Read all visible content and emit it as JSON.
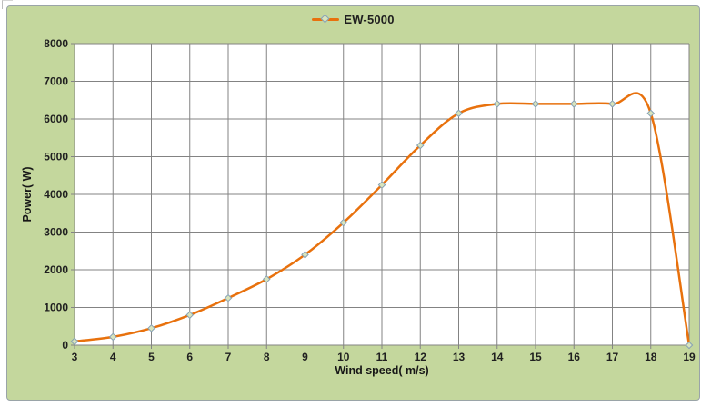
{
  "chart": {
    "legend": {
      "series_label": "EW-5000"
    },
    "x_axis": {
      "title": "Wind speed( m/s)",
      "min": 3,
      "max": 19,
      "step": 1
    },
    "y_axis": {
      "title": "Power( W)",
      "min": 0,
      "max": 8000,
      "step": 1000
    },
    "colors": {
      "background": "#c4d79d",
      "plot_background": "#ffffff",
      "gridline": "#838383",
      "line": "#e8710d",
      "marker_fill": "#d8e4bc",
      "marker_stroke": "#86a1b5",
      "text": "#1f1f1f",
      "border": "#9aa4a8"
    }
  },
  "chart_data": {
    "type": "line",
    "title": "",
    "x": [
      3,
      4,
      5,
      6,
      7,
      8,
      9,
      10,
      11,
      12,
      13,
      14,
      15,
      16,
      17,
      18,
      19
    ],
    "series": [
      {
        "name": "EW-5000",
        "values": [
          100,
          220,
          450,
          800,
          1250,
          1750,
          2400,
          3250,
          4250,
          5300,
          6150,
          6400,
          6400,
          6400,
          6400,
          6150,
          0
        ]
      }
    ],
    "xlabel": "Wind speed( m/s)",
    "ylabel": "Power( W)",
    "xlim": [
      3,
      19
    ],
    "ylim": [
      0,
      8000
    ],
    "x_tick_step": 1,
    "y_tick_step": 1000,
    "grid": true,
    "legend_position": "top-center",
    "line_style": "smooth",
    "marker": "diamond"
  }
}
